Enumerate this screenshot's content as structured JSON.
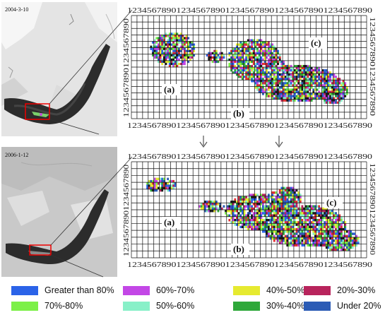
{
  "panels": [
    {
      "date": "2004-3-10",
      "labels": {
        "a": "(a)",
        "b": "(b)",
        "c": "(c)"
      }
    },
    {
      "date": "2006-1-12",
      "labels": {
        "a": "(a)",
        "b": "(b)",
        "c": "(c)"
      }
    }
  ],
  "axis_text": {
    "top": "12345678901234567890123456789012345678901234567890",
    "bottom": "12345678901234567890123456789012345678901234567890",
    "left": "12345678901234567890",
    "right": "12345678901234567890"
  },
  "legend": [
    {
      "label": "Greater than 80%",
      "color": "#2b63e8"
    },
    {
      "label": "60%-70%",
      "color": "#c347e6"
    },
    {
      "label": "40%-50%",
      "color": "#e6ea30"
    },
    {
      "label": "20%-30%",
      "color": "#b8245c"
    },
    {
      "label": "70%-80%",
      "color": "#7cf048"
    },
    {
      "label": "50%-60%",
      "color": "#88f0c8"
    },
    {
      "label": "30%-40%",
      "color": "#2fa83a"
    },
    {
      "label": "Under 20%",
      "color": "#2b5bb5"
    }
  ]
}
